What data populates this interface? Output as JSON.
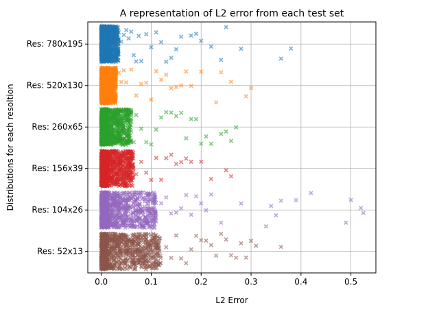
{
  "chart_data": {
    "type": "scatter",
    "title": "A representation of L2 error from each test set",
    "xlabel": "L2 Error",
    "ylabel": "Distributions for each resoltion",
    "xlim": [
      -0.027,
      0.55
    ],
    "x_ticks": [
      0.0,
      0.1,
      0.2,
      0.3,
      0.4,
      0.5
    ],
    "x_tick_labels": [
      "0.0",
      "0.1",
      "0.2",
      "0.3",
      "0.4",
      "0.5"
    ],
    "y_categories": [
      "Res: 780x195",
      "Res: 520x130",
      "Res: 260x65",
      "Res: 156x39",
      "Res: 104x26",
      "Res: 52x13"
    ],
    "grid": true,
    "marker": "x",
    "series": [
      {
        "category": "Res: 780x195",
        "color": "#1f77b4",
        "dense_range": [
          0.0,
          0.035
        ],
        "outliers": [
          0.04,
          0.045,
          0.05,
          0.055,
          0.06,
          0.065,
          0.07,
          0.075,
          0.08,
          0.09,
          0.1,
          0.11,
          0.12,
          0.13,
          0.14,
          0.15,
          0.16,
          0.18,
          0.19,
          0.2,
          0.22,
          0.24,
          0.25,
          0.28,
          0.36,
          0.38
        ]
      },
      {
        "category": "Res: 520x130",
        "color": "#ff7f0e",
        "dense_range": [
          0.0,
          0.03
        ],
        "outliers": [
          0.035,
          0.04,
          0.045,
          0.05,
          0.06,
          0.07,
          0.08,
          0.09,
          0.1,
          0.11,
          0.12,
          0.13,
          0.14,
          0.15,
          0.16,
          0.17,
          0.18,
          0.2,
          0.23,
          0.24,
          0.26,
          0.29,
          0.3
        ]
      },
      {
        "category": "Res: 260x65",
        "color": "#2ca02c",
        "dense_range": [
          0.0,
          0.06
        ],
        "outliers": [
          0.065,
          0.07,
          0.08,
          0.09,
          0.1,
          0.11,
          0.12,
          0.13,
          0.14,
          0.15,
          0.16,
          0.17,
          0.18,
          0.19,
          0.2,
          0.21,
          0.22,
          0.24,
          0.25,
          0.26,
          0.27
        ]
      },
      {
        "category": "Res: 156x39",
        "color": "#d62728",
        "dense_range": [
          0.0,
          0.065
        ],
        "outliers": [
          0.07,
          0.08,
          0.09,
          0.1,
          0.11,
          0.12,
          0.13,
          0.14,
          0.15,
          0.16,
          0.17,
          0.18,
          0.2,
          0.22,
          0.25,
          0.26
        ]
      },
      {
        "category": "Res: 104x26",
        "color": "#9467bd",
        "dense_range": [
          0.0,
          0.11
        ],
        "outliers": [
          0.12,
          0.13,
          0.14,
          0.15,
          0.16,
          0.17,
          0.18,
          0.19,
          0.2,
          0.21,
          0.22,
          0.24,
          0.28,
          0.33,
          0.34,
          0.35,
          0.36,
          0.39,
          0.42,
          0.49,
          0.5,
          0.52,
          0.525
        ]
      },
      {
        "category": "Res: 52x13",
        "color": "#8c564b",
        "dense_range": [
          0.0,
          0.12
        ],
        "outliers": [
          0.13,
          0.14,
          0.15,
          0.16,
          0.17,
          0.18,
          0.19,
          0.2,
          0.21,
          0.22,
          0.23,
          0.24,
          0.25,
          0.26,
          0.27,
          0.28,
          0.29,
          0.3,
          0.31,
          0.36
        ]
      }
    ]
  }
}
